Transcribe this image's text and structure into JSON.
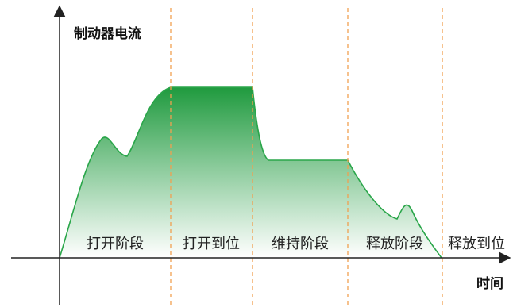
{
  "diagram": {
    "y_axis_label": "制动器电流",
    "x_axis_label": "时间",
    "phases": [
      {
        "label": "打开阶段"
      },
      {
        "label": "打开到位"
      },
      {
        "label": "维持阶段"
      },
      {
        "label": "释放阶段"
      },
      {
        "label": "释放到位"
      }
    ],
    "colors": {
      "curve": "#2aa64a",
      "fill_top": "#1f9a3e",
      "fill_bottom": "#ffffff",
      "divider": "#f0a050",
      "axis": "#222222"
    }
  }
}
